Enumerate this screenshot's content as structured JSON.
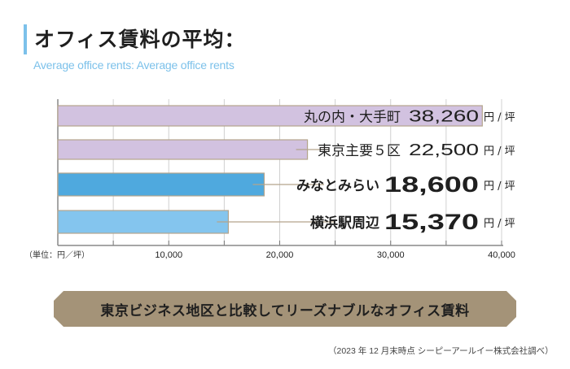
{
  "header": {
    "title": "オフィス賃料の平均：",
    "subtitle": "Average office rents: Average office rents"
  },
  "chart_data": {
    "type": "bar",
    "orientation": "horizontal",
    "categories": [
      "丸の内・大手町",
      "東京主要５区",
      "みなとみらい",
      "横浜駅周辺"
    ],
    "values": [
      38260,
      22500,
      18600,
      15370
    ],
    "value_labels": [
      "38,260",
      "22,500",
      "18,600",
      "15,370"
    ],
    "unit_suffix": "円 / 坪",
    "xlim": [
      0,
      40000
    ],
    "xticks": [
      0,
      5000,
      10000,
      15000,
      20000,
      25000,
      30000,
      35000,
      40000
    ],
    "xtick_labels": [
      "10,000",
      "20,000",
      "30,000",
      "40,000"
    ],
    "xtick_label_values": [
      10000,
      20000,
      30000,
      40000
    ],
    "unit_label": "（単位：円／坪）",
    "grid": true,
    "colors": [
      "#d2c2e0",
      "#d2c2e0",
      "#4fa9de",
      "#84c5ee"
    ],
    "bar_border": "#b3a48c",
    "leader_color": "#b3a48c",
    "emphasized": [
      false,
      false,
      true,
      true
    ]
  },
  "banner": {
    "text": "東京ビジネス地区と比較してリーズナブルなオフィス賃料",
    "color": "#a49378"
  },
  "footer": {
    "source": "（2023 年 12 月末時点  シーピーアールイー株式会社調べ）"
  }
}
